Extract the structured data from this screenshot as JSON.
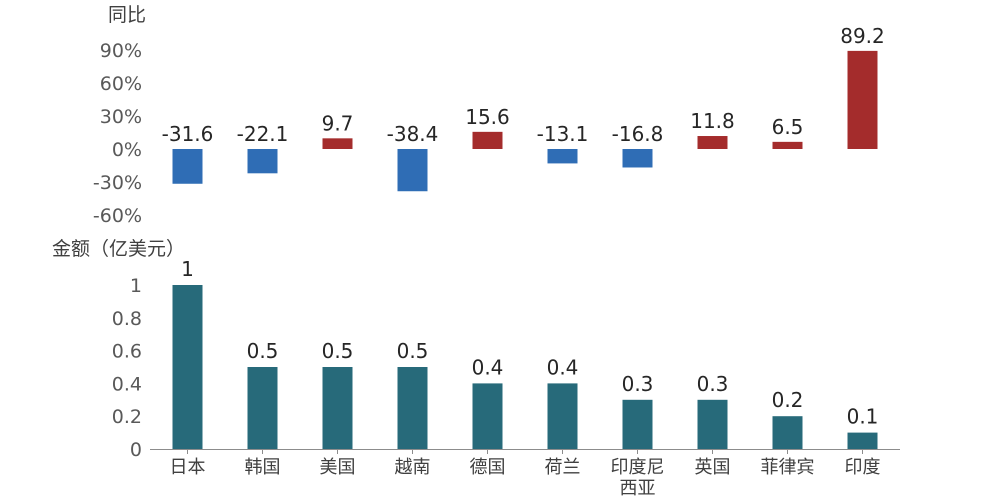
{
  "chart_data": [
    {
      "type": "bar",
      "ylabel": "同比",
      "categories": [
        "日本",
        "韩国",
        "美国",
        "越南",
        "德国",
        "荷兰",
        "印度尼西亚",
        "英国",
        "菲律宾",
        "印度"
      ],
      "values": [
        -31.6,
        -22.1,
        9.7,
        -38.4,
        15.6,
        -13.1,
        -16.8,
        11.8,
        6.5,
        89.2
      ],
      "labels": [
        "-31.6",
        "-22.1",
        "9.7",
        "-38.4",
        "15.6",
        "-13.1",
        "-16.8",
        "11.8",
        "6.5",
        "89.2"
      ],
      "yticks": [
        "90%",
        "60%",
        "30%",
        "0%",
        "-30%",
        "-60%"
      ],
      "ytick_values": [
        90,
        60,
        30,
        0,
        -30,
        -60
      ],
      "ylim": [
        -60,
        90
      ],
      "colors": {
        "positive": "#a42c2c",
        "negative": "#2f6db5"
      }
    },
    {
      "type": "bar",
      "ylabel": "金额（亿美元）",
      "categories": [
        "日本",
        "韩国",
        "美国",
        "越南",
        "德国",
        "荷兰",
        "印度尼西亚",
        "英国",
        "菲律宾",
        "印度"
      ],
      "category_lines": [
        [
          "日本"
        ],
        [
          "韩国"
        ],
        [
          "美国"
        ],
        [
          "越南"
        ],
        [
          "德国"
        ],
        [
          "荷兰"
        ],
        [
          "印度尼",
          "西亚"
        ],
        [
          "英国"
        ],
        [
          "菲律宾"
        ],
        [
          "印度"
        ]
      ],
      "values": [
        1,
        0.5,
        0.5,
        0.5,
        0.4,
        0.4,
        0.3,
        0.3,
        0.2,
        0.1
      ],
      "labels": [
        "1",
        "0.5",
        "0.5",
        "0.5",
        "0.4",
        "0.4",
        "0.3",
        "0.3",
        "0.2",
        "0.1"
      ],
      "yticks": [
        "1",
        "0.8",
        "0.6",
        "0.4",
        "0.2",
        "0"
      ],
      "ytick_values": [
        1,
        0.8,
        0.6,
        0.4,
        0.2,
        0
      ],
      "ylim": [
        0,
        1
      ],
      "colors": {
        "bar": "#276a7a",
        "axis": "#8c8c8c"
      }
    }
  ]
}
